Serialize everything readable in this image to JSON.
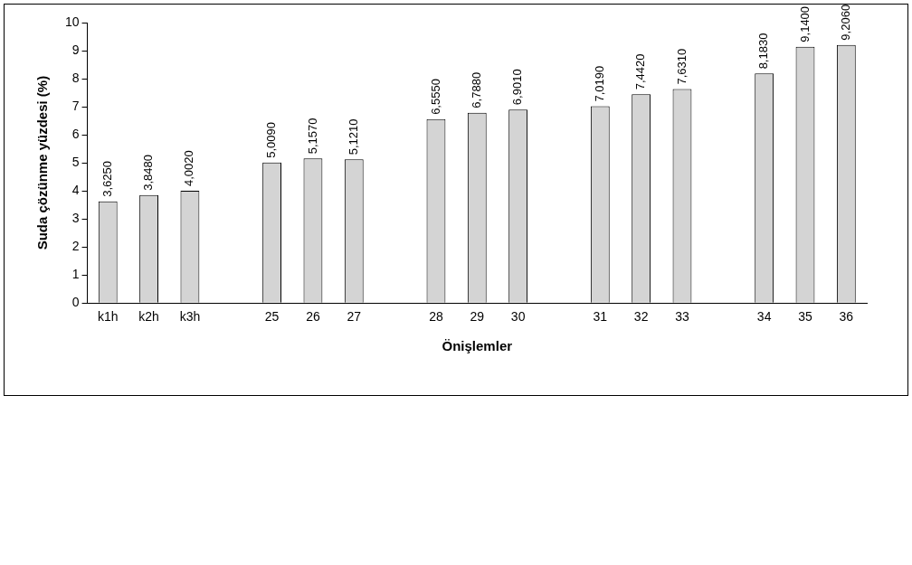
{
  "chart_data": {
    "type": "bar",
    "categories": [
      "k1h",
      "k2h",
      "k3h",
      null,
      "25",
      "26",
      "27",
      null,
      "28",
      "29",
      "30",
      null,
      "31",
      "32",
      "33",
      null,
      "34",
      "35",
      "36"
    ],
    "values": [
      3.625,
      3.848,
      4.002,
      null,
      5.009,
      5.157,
      5.121,
      null,
      6.555,
      6.788,
      6.901,
      null,
      7.019,
      7.442,
      7.631,
      null,
      8.183,
      9.14,
      9.206
    ],
    "value_labels": [
      "3,6250",
      "3,8480",
      "4,0020",
      null,
      "5,0090",
      "5,1570",
      "5,1210",
      null,
      "6,5550",
      "6,7880",
      "6,9010",
      null,
      "7,0190",
      "7,4420",
      "7,6310",
      null,
      "8,1830",
      "9,1400",
      "9,2060"
    ],
    "color": "#d4d4d4",
    "xlabel": "Önişlemler",
    "ylabel": "Suda çözünme yüzdesi (%)",
    "ylim": [
      0,
      10
    ],
    "yticks": [
      0,
      1,
      2,
      3,
      4,
      5,
      6,
      7,
      8,
      9,
      10
    ],
    "grid": false,
    "legend": false
  }
}
